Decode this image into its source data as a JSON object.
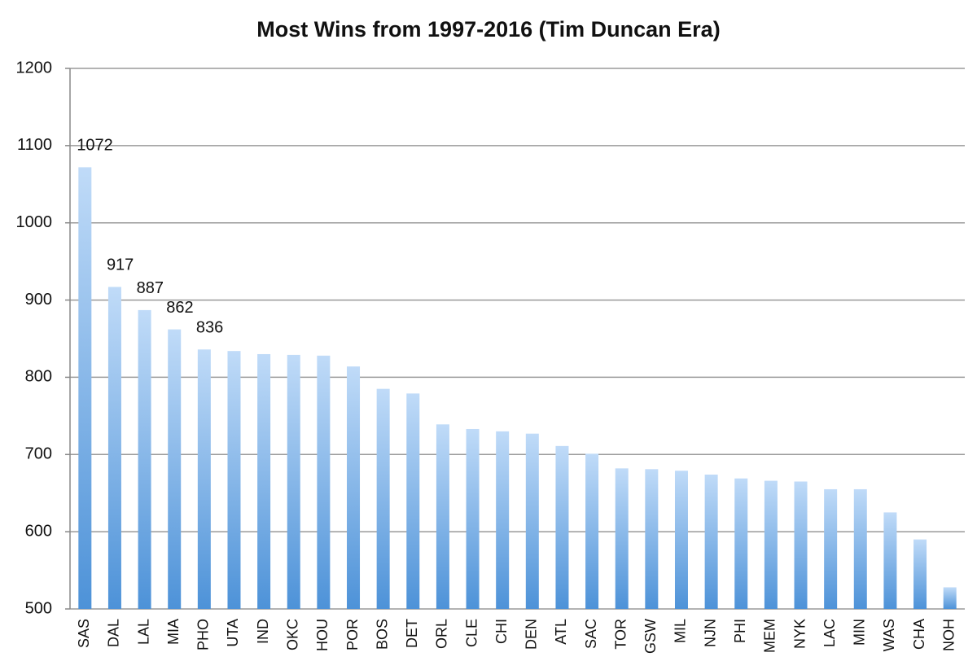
{
  "chart_data": {
    "type": "bar",
    "title": "Most Wins from 1997-2016 (Tim Duncan Era)",
    "categories": [
      "SAS",
      "DAL",
      "LAL",
      "MIA",
      "PHO",
      "UTA",
      "IND",
      "OKC",
      "HOU",
      "POR",
      "BOS",
      "DET",
      "ORL",
      "CLE",
      "CHI",
      "DEN",
      "ATL",
      "SAC",
      "TOR",
      "GSW",
      "MIL",
      "NJN",
      "PHI",
      "MEM",
      "NYK",
      "LAC",
      "MIN",
      "WAS",
      "CHA",
      "NOH"
    ],
    "values": [
      1072,
      917,
      887,
      862,
      836,
      834,
      830,
      829,
      828,
      814,
      785,
      779,
      739,
      733,
      730,
      727,
      711,
      701,
      682,
      681,
      679,
      674,
      669,
      666,
      665,
      655,
      655,
      625,
      590,
      528
    ],
    "data_labels": [
      true,
      true,
      true,
      true,
      true,
      false,
      false,
      false,
      false,
      false,
      false,
      false,
      false,
      false,
      false,
      false,
      false,
      false,
      false,
      false,
      false,
      false,
      false,
      false,
      false,
      false,
      false,
      false,
      false,
      false
    ],
    "color": [
      "#c0dbf8",
      "#4d92d8"
    ],
    "ylim": [
      500,
      1200
    ],
    "yticks": [
      500,
      600,
      700,
      800,
      900,
      1000,
      1100,
      1200
    ],
    "grid": true
  }
}
